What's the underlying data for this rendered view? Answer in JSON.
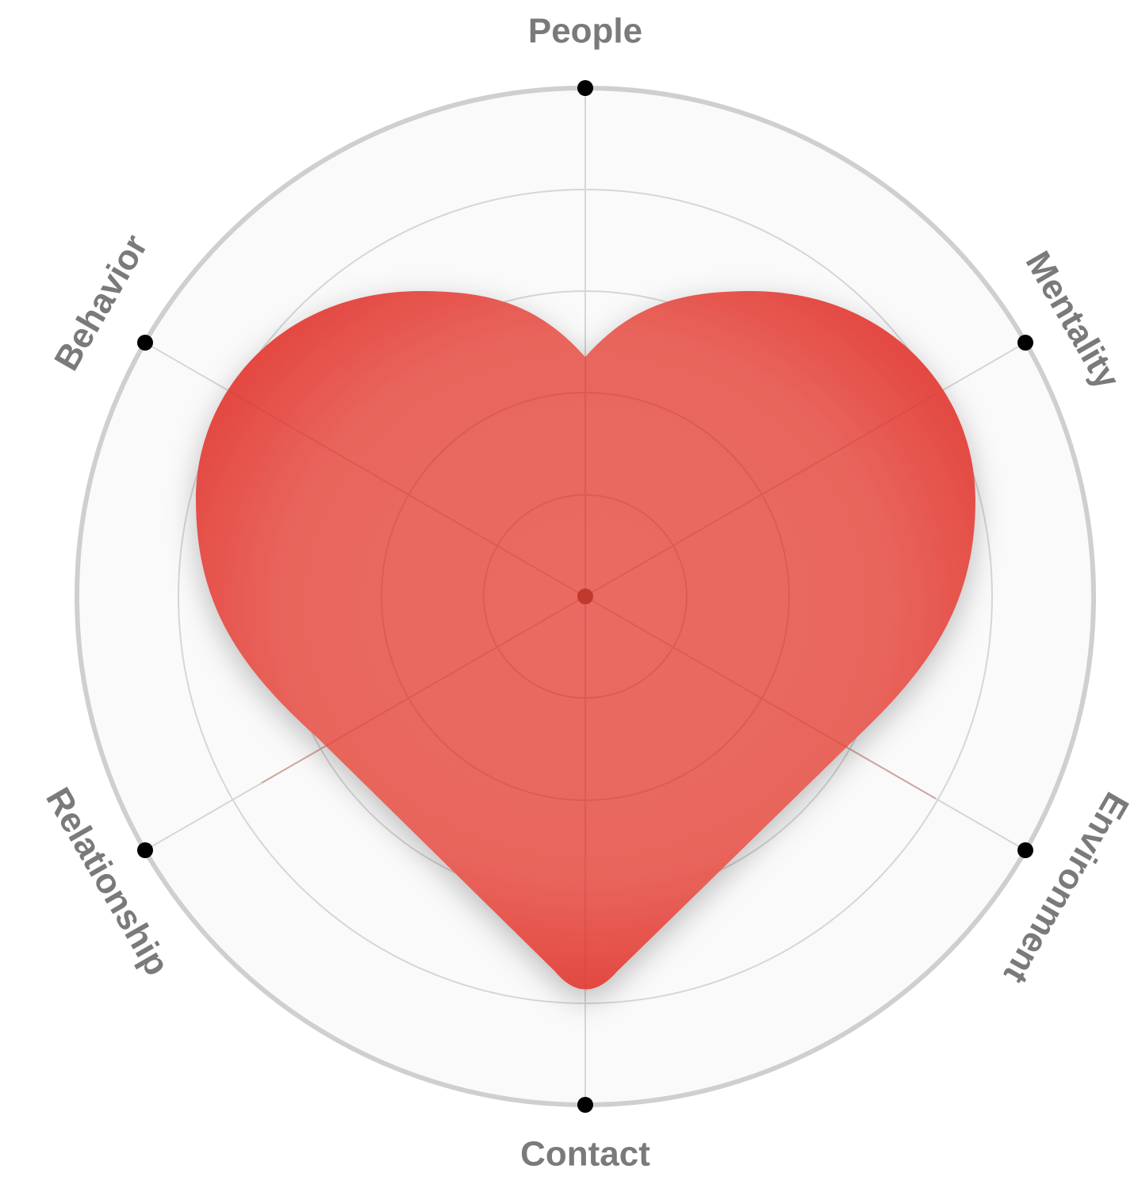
{
  "axes": [
    "People",
    "Mentality",
    "Environment",
    "Contact",
    "Relationship",
    "Behavior"
  ]
}
